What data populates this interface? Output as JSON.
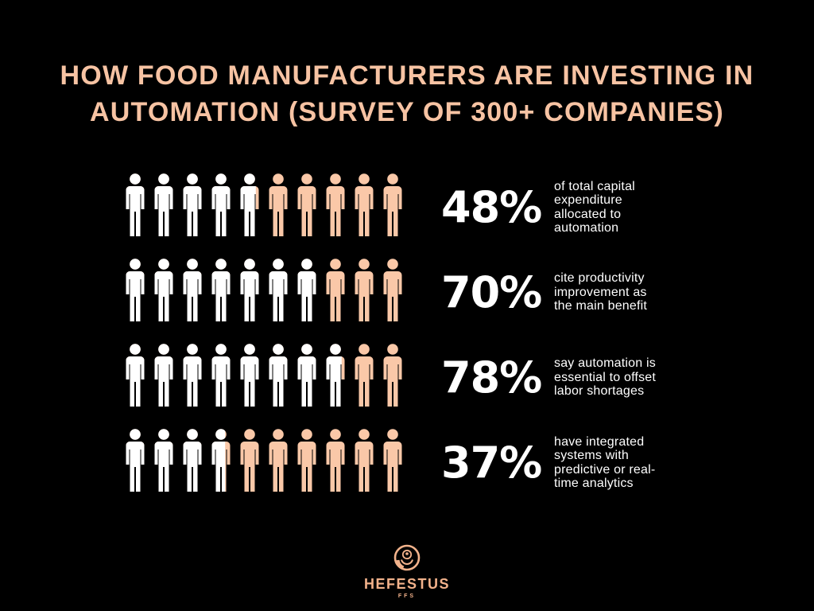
{
  "title": {
    "line1": "HOW FOOD MANUFACTURERS ARE INVESTING IN",
    "line2": "AUTOMATION (SURVEY OF 300+ COMPANIES)"
  },
  "colors": {
    "background": "#000000",
    "title_text": "#F7C3A3",
    "icon_filled": "#FFFFFF",
    "icon_unfilled": "#FAC8A8",
    "stat_text": "#FFFFFF",
    "brand_text": "#F2B28B"
  },
  "pictograph": {
    "icons_per_row": 10,
    "rows": [
      {
        "percent_label": "48%",
        "value": 48,
        "description": "of total capital expenditure allocated to automation",
        "description_lines": [
          "of total capital",
          "expenditure",
          "allocated to",
          "automation"
        ]
      },
      {
        "percent_label": "70%",
        "value": 70,
        "description": "cite productivity improvement as the main benefit",
        "description_lines": [
          "cite productivity",
          "improvement as",
          "the main benefit"
        ]
      },
      {
        "percent_label": "78%",
        "value": 78,
        "description": "say automation is essential to offset labor shortages",
        "description_lines": [
          "say automation is",
          "essential to offset",
          "labor shortages"
        ]
      },
      {
        "percent_label": "37%",
        "value": 37,
        "description": "have integrated systems with predictive or real-time analytics",
        "description_lines": [
          "have integrated",
          "systems with",
          "predictive or real-",
          "time analytics"
        ]
      }
    ]
  },
  "chart_data": {
    "type": "bar",
    "subtype": "pictogram",
    "title": "HOW FOOD MANUFACTURERS ARE INVESTING IN AUTOMATION (SURVEY OF 300+ COMPANIES)",
    "categories": [
      "of total capital expenditure allocated to automation",
      "cite productivity improvement as the main benefit",
      "say automation is essential to offset labor shortages",
      "have integrated systems with predictive or real-time analytics"
    ],
    "values": [
      48,
      70,
      78,
      37
    ],
    "unit": "%",
    "icons_per_row": 10,
    "value_per_icon": 10,
    "legend": "white portion of person icons = stated percentage; peach portion = remainder",
    "xlim": [
      0,
      100
    ],
    "grid": false
  },
  "footer": {
    "brand": "HEFESTUS",
    "subtitle": "FFS"
  }
}
